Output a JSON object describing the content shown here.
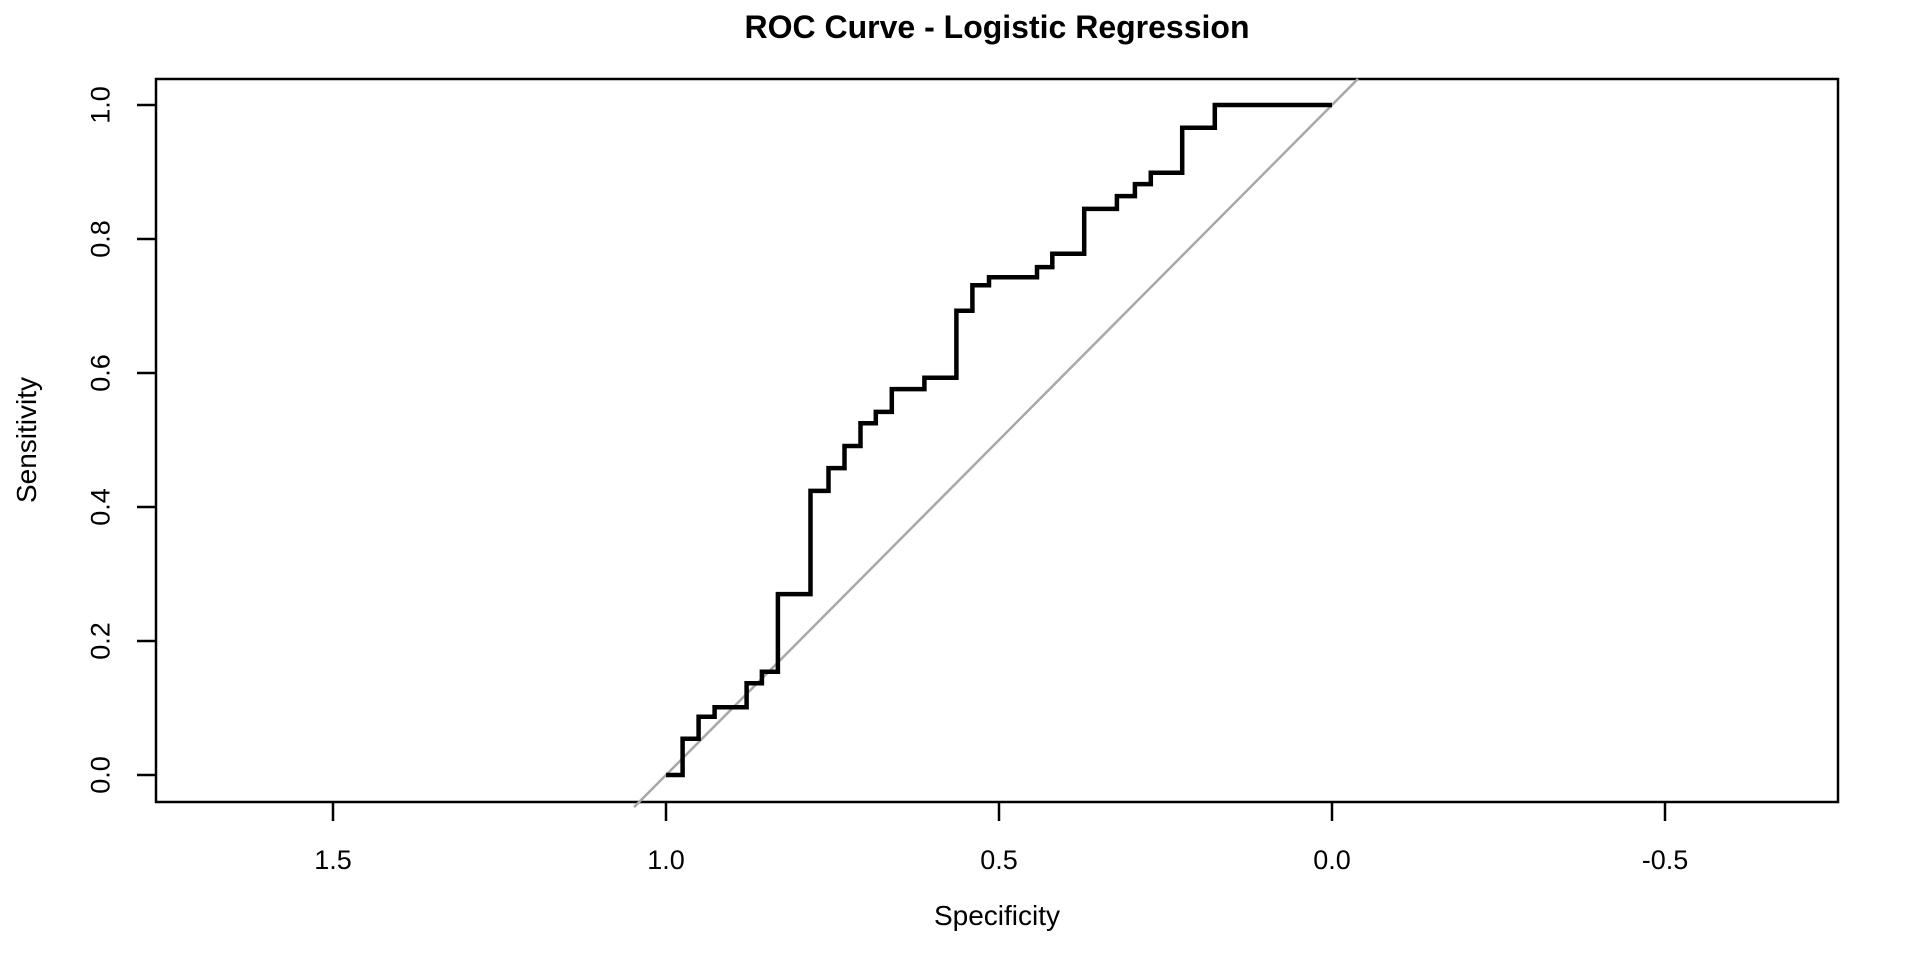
{
  "figure": {
    "background_color": "#ffffff",
    "text_color": "#000000"
  },
  "chart_data": {
    "type": "line",
    "subtype": "roc-step-curve",
    "title": "ROC Curve - Logistic Regression",
    "xlabel": "Specificity",
    "ylabel": "Sensitivity",
    "grid": false,
    "legend": false,
    "x_axis": {
      "label": "Specificity",
      "reversed": true,
      "ticks": [
        1.5,
        1.0,
        0.5,
        0.0,
        -0.5
      ],
      "tick_labels": [
        "1.5",
        "1.0",
        "0.5",
        "0.0",
        "-0.5"
      ],
      "range_displayed": [
        1.77,
        -0.76
      ]
    },
    "y_axis": {
      "label": "Sensitivity",
      "ticks": [
        0.0,
        0.2,
        0.4,
        0.6,
        0.8,
        1.0
      ],
      "tick_labels": [
        "0.0",
        "0.2",
        "0.4",
        "0.6",
        "0.8",
        "1.0"
      ],
      "range_displayed": [
        -0.04,
        1.04
      ]
    },
    "series": [
      {
        "name": "roc-curve",
        "color": "#000000",
        "line_width": 4.5,
        "step_style": "horizontal-then-vertical",
        "points": [
          [
            1.0,
            0.0
          ],
          [
            0.975,
            0.054
          ],
          [
            0.951,
            0.087
          ],
          [
            0.927,
            0.101
          ],
          [
            0.879,
            0.137
          ],
          [
            0.856,
            0.154
          ],
          [
            0.832,
            0.27
          ],
          [
            0.783,
            0.424
          ],
          [
            0.756,
            0.458
          ],
          [
            0.732,
            0.491
          ],
          [
            0.708,
            0.525
          ],
          [
            0.685,
            0.542
          ],
          [
            0.661,
            0.576
          ],
          [
            0.612,
            0.593
          ],
          [
            0.564,
            0.693
          ],
          [
            0.54,
            0.731
          ],
          [
            0.515,
            0.743
          ],
          [
            0.443,
            0.758
          ],
          [
            0.42,
            0.778
          ],
          [
            0.372,
            0.845
          ],
          [
            0.323,
            0.864
          ],
          [
            0.296,
            0.882
          ],
          [
            0.272,
            0.899
          ],
          [
            0.225,
            0.966
          ],
          [
            0.176,
            1.0
          ],
          [
            0.0,
            1.0
          ]
        ]
      },
      {
        "name": "chance-diagonal",
        "color": "#a8a8a8",
        "line_width": 2.5,
        "step_style": "straight",
        "points": [
          [
            1.048,
            -0.048
          ],
          [
            -0.039,
            1.039
          ]
        ]
      }
    ]
  }
}
